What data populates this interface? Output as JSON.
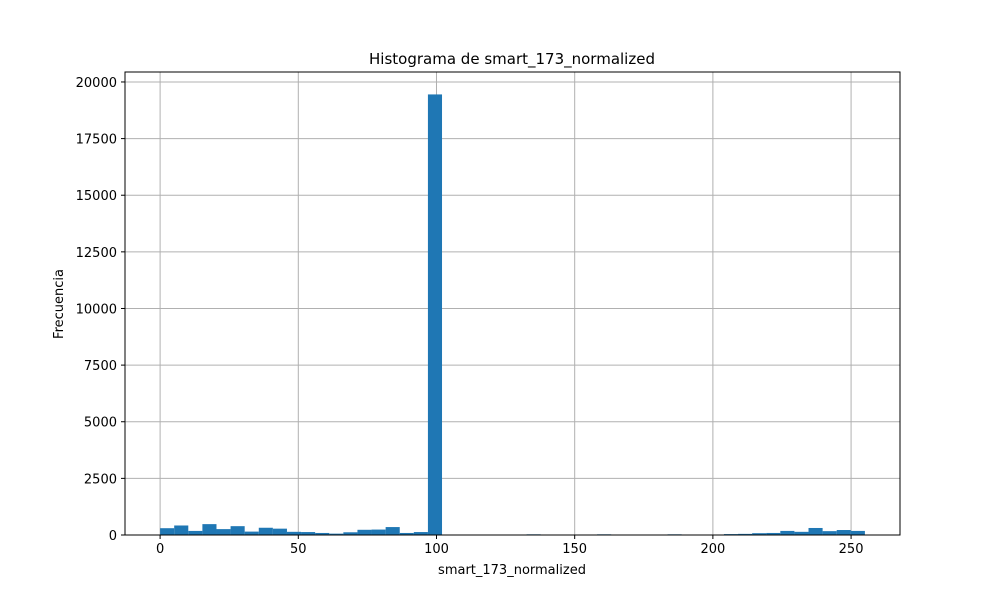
{
  "chart_data": {
    "type": "bar",
    "title": "Histograma de smart_173_normalized",
    "xlabel": "smart_173_normalized",
    "ylabel": "Frecuencia",
    "xlim": [
      -12.7,
      267.7
    ],
    "ylim": [
      0,
      20440
    ],
    "grid": true,
    "bar_color": "#1f77b4",
    "xticks": [
      0,
      50,
      100,
      150,
      200,
      250
    ],
    "xtick_labels": [
      "0",
      "50",
      "100",
      "150",
      "200",
      "250"
    ],
    "yticks": [
      0,
      2500,
      5000,
      7500,
      10000,
      12500,
      15000,
      17500,
      20000
    ],
    "ytick_labels": [
      "0",
      "2500",
      "5000",
      "7500",
      "10000",
      "12500",
      "15000",
      "17500",
      "20000"
    ],
    "bin_start": 0,
    "bin_width": 5.1,
    "values": [
      300,
      420,
      180,
      480,
      260,
      390,
      150,
      320,
      280,
      140,
      130,
      90,
      60,
      120,
      230,
      240,
      350,
      90,
      130,
      19450,
      0,
      0,
      0,
      0,
      0,
      0,
      30,
      0,
      0,
      0,
      0,
      30,
      0,
      0,
      0,
      0,
      30,
      0,
      0,
      0,
      40,
      50,
      80,
      90,
      180,
      140,
      310,
      170,
      220,
      180
    ]
  }
}
